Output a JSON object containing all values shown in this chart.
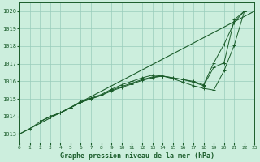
{
  "title": "Graphe pression niveau de la mer (hPa)",
  "bg_color": "#cceedd",
  "grid_color": "#99ccbb",
  "line_color": "#1a5c2a",
  "xlim": [
    0,
    23
  ],
  "ylim": [
    1012.5,
    1020.5
  ],
  "xticks": [
    0,
    1,
    2,
    3,
    4,
    5,
    6,
    7,
    8,
    9,
    10,
    11,
    12,
    13,
    14,
    15,
    16,
    17,
    18,
    19,
    20,
    21,
    22,
    23
  ],
  "yticks": [
    1013,
    1014,
    1015,
    1016,
    1017,
    1018,
    1019,
    1020
  ],
  "trend_x": [
    0,
    23
  ],
  "trend_y": [
    1013.0,
    1020.0
  ],
  "s1_x": [
    0,
    1,
    2,
    3,
    4,
    5,
    6,
    7,
    8,
    9,
    10,
    11,
    12,
    13,
    14,
    15,
    16,
    17,
    18,
    19,
    20,
    21,
    22
  ],
  "s1_y": [
    1013.0,
    1013.3,
    1013.7,
    1014.0,
    1014.2,
    1014.5,
    1014.8,
    1015.0,
    1015.2,
    1015.45,
    1015.65,
    1015.85,
    1016.05,
    1016.2,
    1016.3,
    1016.15,
    1015.95,
    1015.75,
    1015.6,
    1015.5,
    1016.6,
    1018.05,
    1020.0
  ],
  "s2_x": [
    2,
    3,
    4,
    5,
    6,
    7,
    8,
    9,
    10,
    11,
    12,
    13,
    14,
    15,
    16,
    17,
    18,
    19,
    20,
    21,
    22
  ],
  "s2_y": [
    1013.7,
    1014.0,
    1014.2,
    1014.5,
    1014.8,
    1015.0,
    1015.2,
    1015.5,
    1015.7,
    1015.9,
    1016.1,
    1016.25,
    1016.3,
    1016.2,
    1016.1,
    1015.95,
    1015.75,
    1016.8,
    1017.05,
    1019.5,
    1020.0
  ],
  "s3_x": [
    2,
    3,
    4,
    5,
    6,
    7,
    8,
    9,
    10,
    11,
    12,
    13,
    14,
    15,
    16,
    17,
    18,
    19,
    20,
    21,
    22
  ],
  "s3_y": [
    1013.7,
    1014.0,
    1014.2,
    1014.5,
    1014.85,
    1015.05,
    1015.25,
    1015.55,
    1015.8,
    1016.0,
    1016.2,
    1016.35,
    1016.3,
    1016.2,
    1016.1,
    1016.0,
    1015.8,
    1017.05,
    1018.1,
    1019.35,
    1020.0
  ],
  "figsize": [
    3.2,
    2.0
  ],
  "dpi": 100
}
